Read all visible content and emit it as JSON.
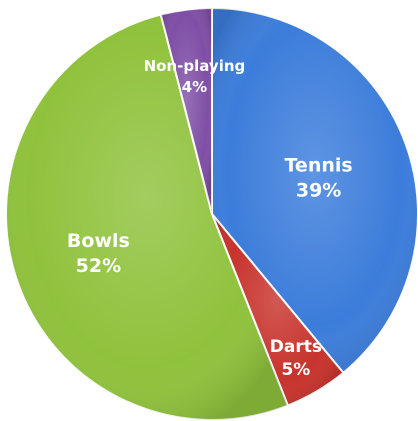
{
  "chart_data": {
    "type": "pie",
    "slices": [
      {
        "label": "Tennis",
        "value": 39,
        "value_label": "39%",
        "color": "#3c7ddb"
      },
      {
        "label": "Darts",
        "value": 5,
        "value_label": "5%",
        "color": "#c8332d"
      },
      {
        "label": "Bowls",
        "value": 52,
        "value_label": "52%",
        "color": "#8fc23c"
      },
      {
        "label": "Non-playing",
        "value": 4,
        "value_label": "4%",
        "color": "#7f4fa6"
      }
    ],
    "start": "12 o'clock",
    "direction": "clockwise",
    "legend": "none"
  }
}
